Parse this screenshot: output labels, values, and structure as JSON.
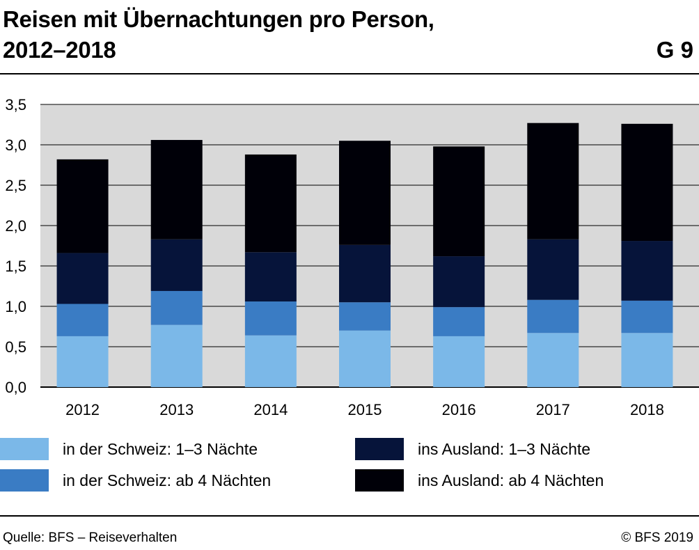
{
  "header": {
    "title_line1": "Reisen mit Übernachtungen pro Person,",
    "title_line2": "2012–2018",
    "figure_id": "G 9"
  },
  "footer": {
    "source": "Quelle: BFS – Reiseverhalten",
    "copyright": "© BFS 2019"
  },
  "colors": {
    "plot_background": "#d9d9d9",
    "gridline": "#000000",
    "series": [
      "#7bb8e8",
      "#3a7cc4",
      "#06143a",
      "#000008"
    ]
  },
  "chart_data": {
    "type": "bar",
    "stacked": true,
    "title": "Reisen mit Übernachtungen pro Person, 2012–2018",
    "xlabel": "",
    "ylabel": "",
    "categories": [
      "2012",
      "2013",
      "2014",
      "2015",
      "2016",
      "2017",
      "2018"
    ],
    "ylim": [
      0,
      3.5
    ],
    "yticks": [
      "0,0",
      "0,5",
      "1,0",
      "1,5",
      "2,0",
      "2,5",
      "3,0",
      "3,5"
    ],
    "grid": true,
    "legend_position": "bottom",
    "series": [
      {
        "name": "in der Schweiz: 1–3 Nächte",
        "values": [
          0.63,
          0.77,
          0.64,
          0.7,
          0.63,
          0.67,
          0.67
        ]
      },
      {
        "name": "in der Schweiz: ab 4 Nächten",
        "values": [
          0.4,
          0.42,
          0.42,
          0.35,
          0.36,
          0.41,
          0.4
        ]
      },
      {
        "name": "ins Ausland: 1–3 Nächte",
        "values": [
          0.63,
          0.64,
          0.61,
          0.71,
          0.63,
          0.75,
          0.74
        ]
      },
      {
        "name": "ins Ausland: ab 4 Nächten",
        "values": [
          1.16,
          1.23,
          1.21,
          1.29,
          1.36,
          1.44,
          1.45
        ]
      }
    ]
  }
}
